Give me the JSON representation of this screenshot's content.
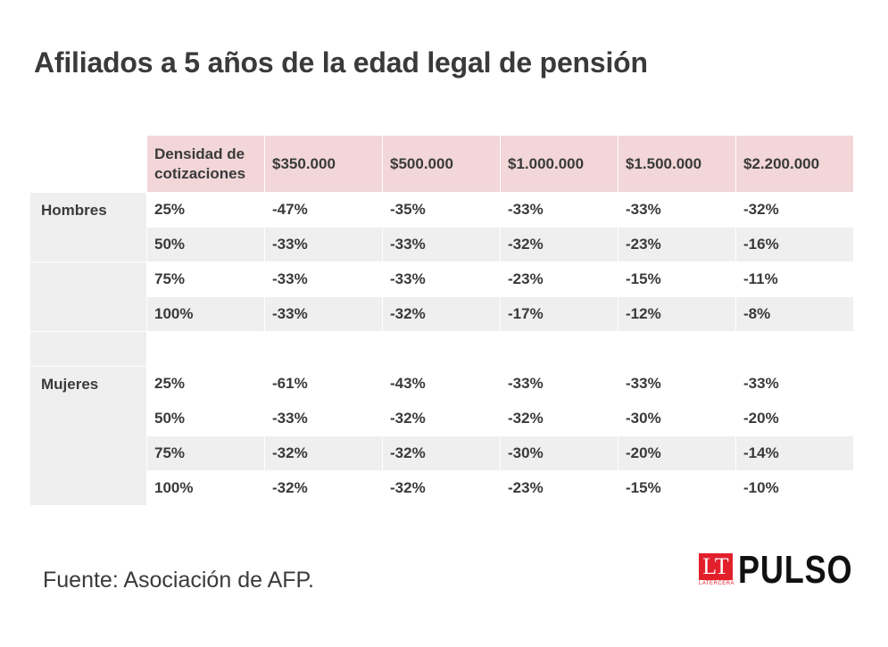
{
  "title": "Afiliados a 5 años de la edad legal de pensión",
  "source": "Fuente: Asociación de AFP.",
  "logo": {
    "lt": "LT",
    "lt_sub": "LATERCERA",
    "brand": "PULSO"
  },
  "colors": {
    "header_bg": "#f2d6d8",
    "stripe_bg": "#efefef",
    "logo_red": "#e2202c"
  },
  "chart_data": {
    "type": "table",
    "title": "Afiliados a 5 años de la edad legal de pensión",
    "columns": [
      "Densidad de cotizaciones",
      "$350.000",
      "$500.000",
      "$1.000.000",
      "$1.500.000",
      "$2.200.000"
    ],
    "groups": [
      {
        "name": "Hombres",
        "rows": [
          {
            "density": "25%",
            "values": [
              "-47%",
              "-35%",
              "-33%",
              "-33%",
              "-32%"
            ]
          },
          {
            "density": "50%",
            "values": [
              "-33%",
              "-33%",
              "-32%",
              "-23%",
              "-16%"
            ]
          },
          {
            "density": "75%",
            "values": [
              "-33%",
              "-33%",
              "-23%",
              "-15%",
              "-11%"
            ]
          },
          {
            "density": "100%",
            "values": [
              "-33%",
              "-32%",
              "-17%",
              "-12%",
              "-8%"
            ]
          }
        ]
      },
      {
        "name": "Mujeres",
        "rows": [
          {
            "density": "25%",
            "values": [
              "-61%",
              "-43%",
              "-33%",
              "-33%",
              "-33%"
            ]
          },
          {
            "density": "50%",
            "values": [
              "-33%",
              "-32%",
              "-32%",
              "-30%",
              "-20%"
            ]
          },
          {
            "density": "75%",
            "values": [
              "-32%",
              "-32%",
              "-30%",
              "-20%",
              "-14%"
            ]
          },
          {
            "density": "100%",
            "values": [
              "-32%",
              "-32%",
              "-23%",
              "-15%",
              "-10%"
            ]
          }
        ]
      }
    ]
  }
}
